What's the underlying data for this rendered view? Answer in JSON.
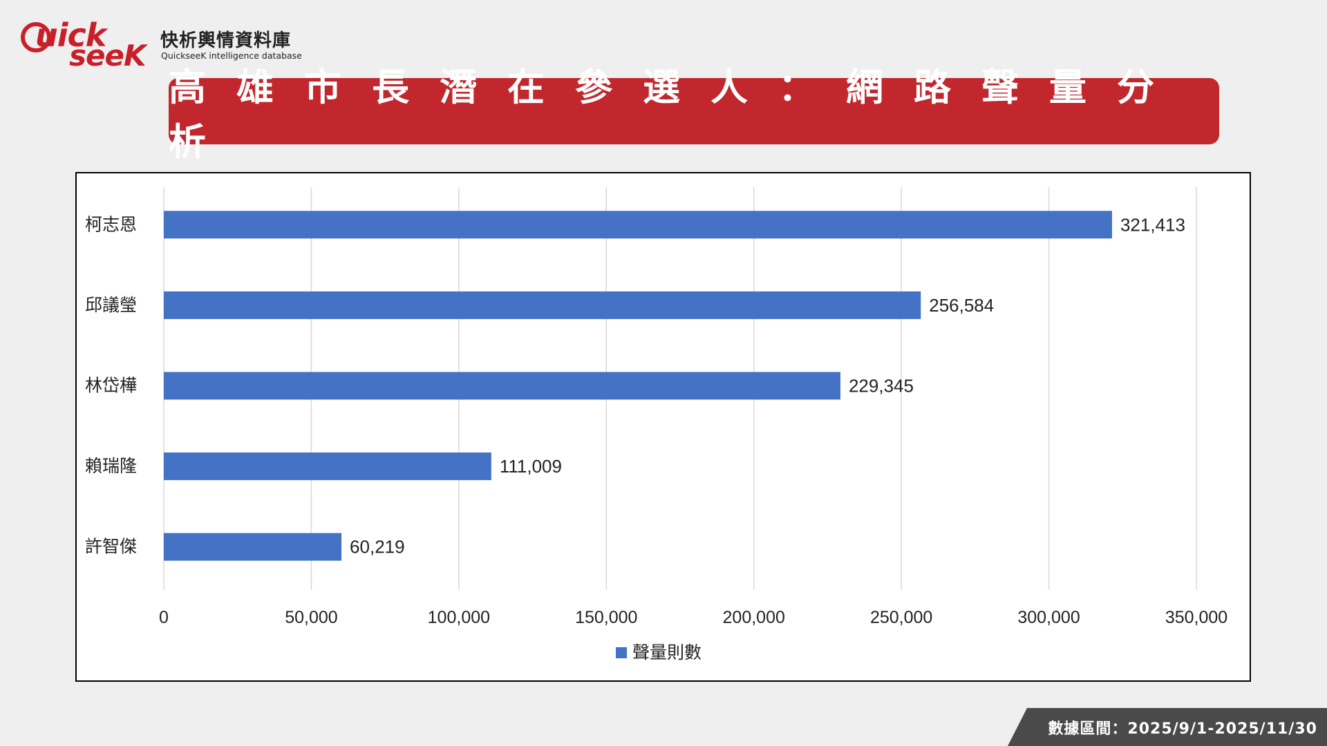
{
  "brand": {
    "logo_text": "Quick seeK",
    "name_cn": "快析輿情資料庫",
    "name_en": "QuickseeK intelligence database",
    "color": "#c8202a"
  },
  "title": "高雄市長潛在參選人：網路聲量分析",
  "chart_data": {
    "type": "bar",
    "orientation": "horizontal",
    "categories": [
      "柯志恩",
      "邱議瑩",
      "林岱樺",
      "賴瑞隆",
      "許智傑"
    ],
    "series": [
      {
        "name": "聲量則數",
        "values": [
          321413,
          256584,
          229345,
          111009,
          60219
        ],
        "color": "#4472c4"
      }
    ],
    "data_labels": [
      "321,413",
      "256,584",
      "229,345",
      "111,009",
      "60,219"
    ],
    "xlim": [
      0,
      350000
    ],
    "xticks": [
      0,
      50000,
      100000,
      150000,
      200000,
      250000,
      300000,
      350000
    ],
    "xtick_labels": [
      "0",
      "50,000",
      "100,000",
      "150,000",
      "200,000",
      "250,000",
      "300,000",
      "350,000"
    ],
    "grid": true,
    "legend_position": "bottom",
    "title": "",
    "xlabel": "",
    "ylabel": ""
  },
  "footer": {
    "period": "數據區間：2025/9/1-2025/11/30"
  }
}
